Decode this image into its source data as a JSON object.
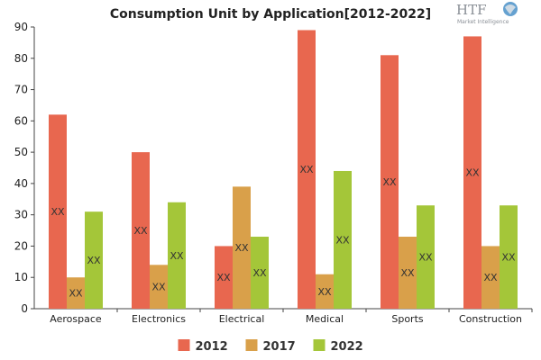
{
  "chart_data": {
    "type": "bar",
    "title": "Consumption Unit by  Application[2012-2022]",
    "xlabel": "",
    "ylabel": "",
    "ylim": [
      0,
      90
    ],
    "yticks": [
      0,
      10,
      20,
      30,
      40,
      50,
      60,
      70,
      80,
      90
    ],
    "grid": false,
    "legend_position": "bottom",
    "categories": [
      "Aerospace",
      "Electronics",
      "Electrical",
      "Medical",
      "Sports",
      "Construction"
    ],
    "series": [
      {
        "name": "2012",
        "color": "#e8674f",
        "values": [
          62,
          50,
          20,
          89,
          81,
          87
        ],
        "labels": [
          "XX",
          "XX",
          "XX",
          "XX",
          "XX",
          "XX"
        ]
      },
      {
        "name": "2017",
        "color": "#d9a04a",
        "values": [
          10,
          14,
          39,
          11,
          23,
          20
        ],
        "labels": [
          "XX",
          "XX",
          "XX",
          "XX",
          "XX",
          "XX"
        ]
      },
      {
        "name": "2022",
        "color": "#a4c639",
        "values": [
          31,
          34,
          23,
          44,
          33,
          33
        ],
        "labels": [
          "XX",
          "XX",
          "XX",
          "XX",
          "XX",
          "XX"
        ]
      }
    ]
  },
  "logo": {
    "text": "HTF",
    "subtitle": "Market Intelligence",
    "icon": "globe-icon"
  }
}
